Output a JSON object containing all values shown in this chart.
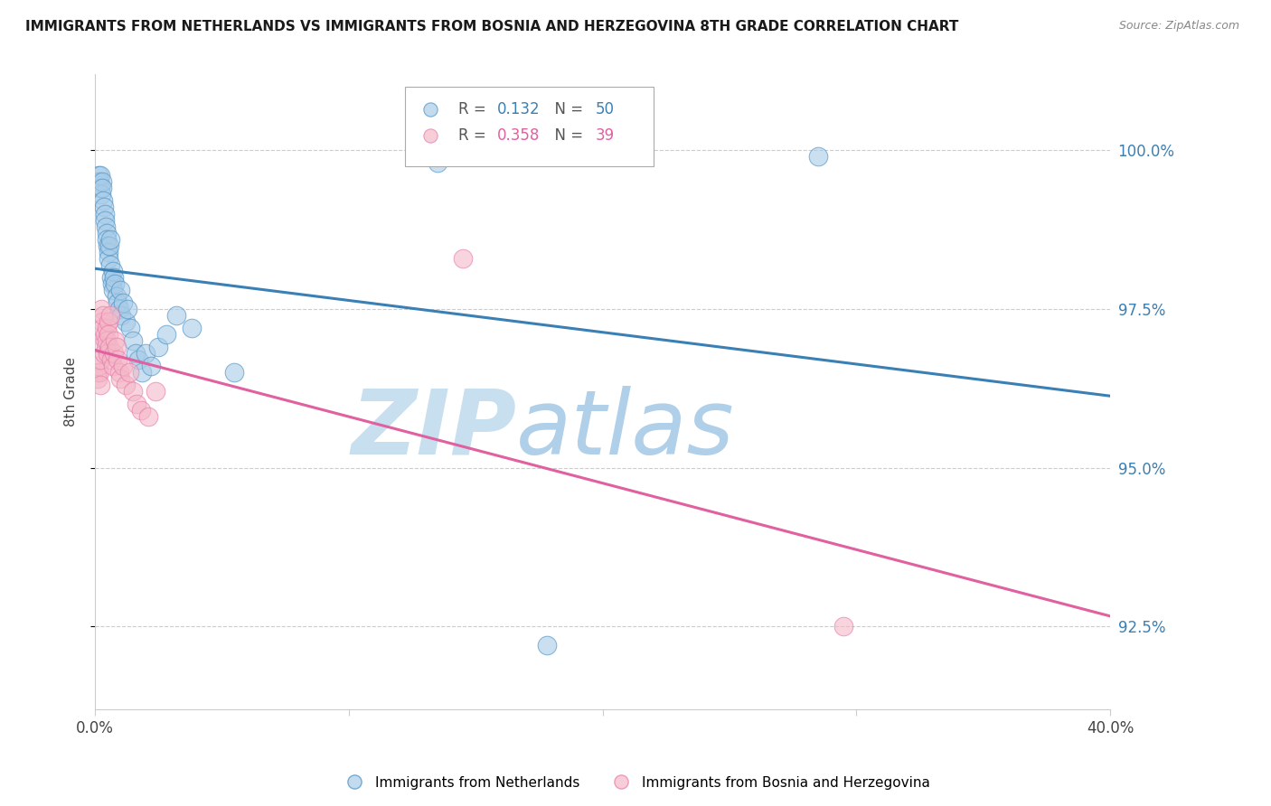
{
  "title": "IMMIGRANTS FROM NETHERLANDS VS IMMIGRANTS FROM BOSNIA AND HERZEGOVINA 8TH GRADE CORRELATION CHART",
  "source_text": "Source: ZipAtlas.com",
  "ylabel": "8th Grade",
  "legend_blue_r_val": "0.132",
  "legend_blue_n_val": "50",
  "legend_pink_r_val": "0.358",
  "legend_pink_n_val": "39",
  "legend_label_blue": "Immigrants from Netherlands",
  "legend_label_pink": "Immigrants from Bosnia and Herzegovina",
  "color_blue_fill": "#a8cce8",
  "color_pink_fill": "#f4b8c8",
  "color_blue_edge": "#4a90c4",
  "color_pink_edge": "#e87aaa",
  "color_blue_line": "#3a80b4",
  "color_pink_line": "#e060a0",
  "color_right_axis": "#3a80b4",
  "watermark_zip_color": "#c8dff0",
  "watermark_atlas_color": "#b0cfe8",
  "xlim": [
    0.0,
    40.0
  ],
  "ylim": [
    91.2,
    101.2
  ],
  "yticks": [
    92.5,
    95.0,
    97.5,
    100.0
  ],
  "blue_x": [
    0.1,
    0.15,
    0.18,
    0.2,
    0.22,
    0.25,
    0.28,
    0.3,
    0.32,
    0.35,
    0.38,
    0.4,
    0.42,
    0.45,
    0.48,
    0.5,
    0.52,
    0.55,
    0.58,
    0.6,
    0.62,
    0.65,
    0.68,
    0.7,
    0.72,
    0.75,
    0.8,
    0.85,
    0.9,
    0.95,
    1.0,
    1.05,
    1.1,
    1.2,
    1.3,
    1.4,
    1.5,
    1.6,
    1.7,
    1.85,
    2.0,
    2.2,
    2.5,
    2.8,
    3.2,
    3.8,
    5.5,
    13.5,
    17.8,
    28.5
  ],
  "blue_y": [
    99.5,
    99.6,
    99.5,
    99.4,
    99.6,
    99.3,
    99.5,
    99.4,
    99.2,
    99.1,
    99.0,
    98.9,
    98.8,
    98.7,
    98.6,
    98.5,
    98.4,
    98.3,
    98.5,
    98.2,
    98.6,
    98.0,
    97.9,
    98.1,
    97.8,
    98.0,
    97.9,
    97.7,
    97.6,
    97.5,
    97.8,
    97.4,
    97.6,
    97.3,
    97.5,
    97.2,
    97.0,
    96.8,
    96.7,
    96.5,
    96.8,
    96.6,
    96.9,
    97.1,
    97.4,
    97.2,
    96.5,
    99.8,
    92.2,
    99.9
  ],
  "pink_x": [
    0.1,
    0.12,
    0.15,
    0.18,
    0.2,
    0.22,
    0.25,
    0.28,
    0.3,
    0.32,
    0.35,
    0.38,
    0.4,
    0.42,
    0.45,
    0.48,
    0.5,
    0.52,
    0.55,
    0.58,
    0.6,
    0.65,
    0.7,
    0.75,
    0.8,
    0.85,
    0.9,
    0.95,
    1.0,
    1.1,
    1.2,
    1.35,
    1.5,
    1.65,
    1.8,
    2.1,
    2.4,
    14.5,
    29.5
  ],
  "pink_y": [
    96.5,
    96.4,
    96.6,
    96.5,
    96.3,
    96.7,
    97.5,
    97.3,
    97.2,
    97.4,
    96.8,
    97.0,
    97.1,
    96.9,
    97.2,
    97.0,
    96.8,
    97.3,
    97.1,
    96.9,
    97.4,
    96.7,
    96.6,
    96.8,
    97.0,
    96.9,
    96.7,
    96.5,
    96.4,
    96.6,
    96.3,
    96.5,
    96.2,
    96.0,
    95.9,
    95.8,
    96.2,
    98.3,
    92.5
  ]
}
